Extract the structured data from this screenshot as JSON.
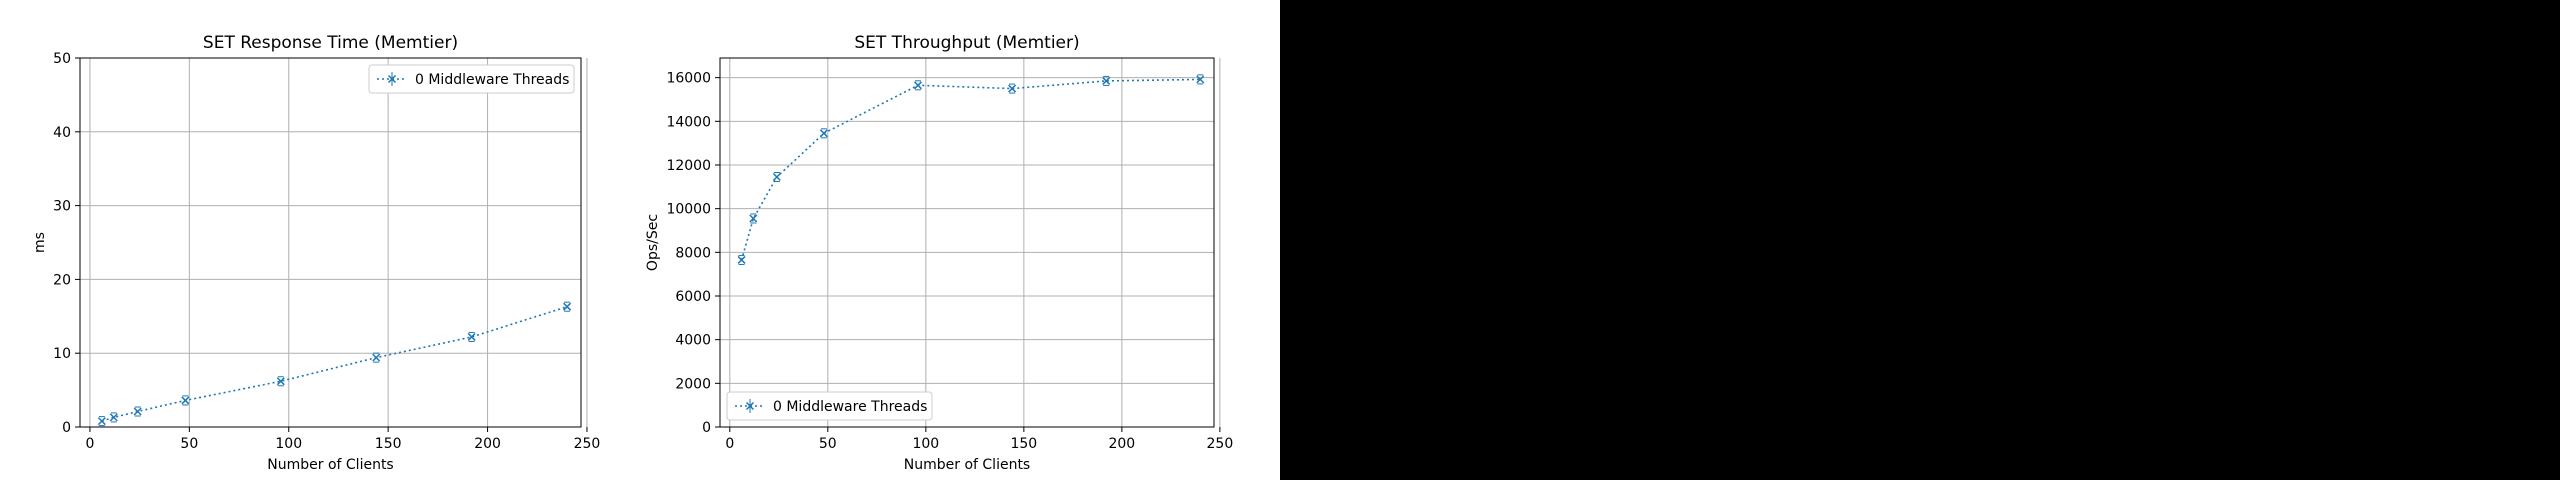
{
  "chart_data": [
    {
      "type": "line",
      "title": "SET Response Time (Memtier)",
      "xlabel": "Number of Clients",
      "ylabel": "ms",
      "xlim": [
        -5,
        247
      ],
      "ylim": [
        0,
        50
      ],
      "xticks": [
        0,
        50,
        100,
        150,
        200,
        250
      ],
      "yticks": [
        0,
        10,
        20,
        30,
        40,
        50
      ],
      "grid": true,
      "legend_position": "top-right",
      "series": [
        {
          "name": "0 Middleware Threads",
          "color": "#1f77b4",
          "line_style": "dotted",
          "marker": "x",
          "x": [
            6,
            12,
            24,
            48,
            96,
            144,
            192,
            240
          ],
          "y": [
            0.8,
            1.3,
            2.1,
            3.6,
            6.2,
            9.4,
            12.2,
            16.3
          ]
        }
      ]
    },
    {
      "type": "line",
      "title": "SET Throughput (Memtier)",
      "xlabel": "Number of Clients",
      "ylabel": "Ops/Sec",
      "xlim": [
        -5,
        247
      ],
      "ylim": [
        0,
        16900
      ],
      "xticks": [
        0,
        50,
        100,
        150,
        200,
        250
      ],
      "yticks": [
        0,
        2000,
        4000,
        6000,
        8000,
        10000,
        12000,
        14000,
        16000
      ],
      "grid": true,
      "legend_position": "bottom-left",
      "series": [
        {
          "name": "0 Middleware Threads",
          "color": "#1f77b4",
          "line_style": "dotted",
          "marker": "x",
          "x": [
            6,
            12,
            24,
            48,
            96,
            144,
            192,
            240
          ],
          "y": [
            7650,
            9550,
            11450,
            13450,
            15650,
            15500,
            15850,
            15920
          ]
        }
      ]
    }
  ]
}
